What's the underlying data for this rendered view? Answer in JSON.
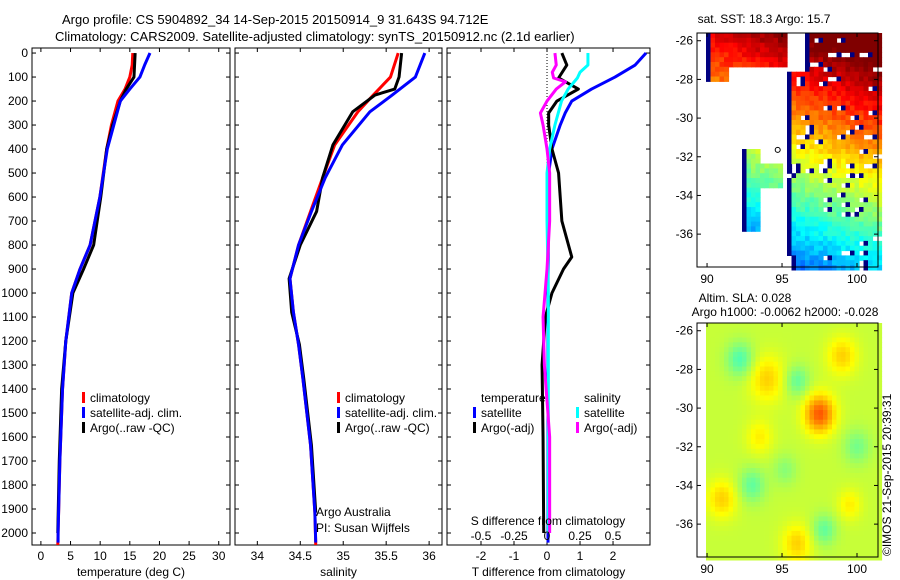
{
  "header": {
    "title_line1": "Argo profile: CS 5904892_34 14-Sep-2015 20150914_9 31.643S 94.712E",
    "title_line2": "Climatology: CARS2009. Satellite-adjusted climatology: synTS_20150912.nc (2.1d earlier)"
  },
  "credits": {
    "program": "Argo Australia",
    "pi": "PI: Susan Wijffels",
    "imos_stamp": "©IMOS 21-Sep-2015 20:39:31"
  },
  "colors": {
    "climatology": "#ff0000",
    "satellite": "#0000ff",
    "argo": "#000000",
    "s_satellite": "#00ffff",
    "s_argo": "#ff00ff"
  },
  "chart_data": [
    {
      "type": "line",
      "title": "",
      "xlabel": "temperature (deg C)",
      "ylabel": "",
      "xlim": [
        -1.5,
        31.9
      ],
      "ylim": [
        2050,
        -21
      ],
      "xticks": [
        0,
        5,
        10,
        15,
        20,
        25,
        30
      ],
      "xtick_labels": [
        "0",
        "5",
        "10",
        "15",
        "20",
        "25",
        "30"
      ],
      "yticks": [
        0,
        100,
        200,
        300,
        400,
        500,
        600,
        700,
        800,
        900,
        1000,
        1100,
        1200,
        1300,
        1400,
        1500,
        1600,
        1700,
        1800,
        1900,
        2000
      ],
      "ytick_labels": [
        "0",
        "100",
        "200",
        "300",
        "400",
        "500",
        "600",
        "700",
        "800",
        "900",
        "1000",
        "1100",
        "1200",
        "1300",
        "1400",
        "1500",
        "1600",
        "1700",
        "1800",
        "1900",
        "2000"
      ],
      "legend": [
        "climatology",
        "satellite-adj. clim.",
        "Argo(..raw -QC)"
      ],
      "series": [
        {
          "name": "climatology",
          "color": "#ff0000",
          "depth": [
            0,
            50,
            100,
            150,
            200,
            300,
            400,
            600,
            800,
            900,
            1000,
            1200,
            1400,
            1700,
            2000,
            2050
          ],
          "values": [
            15.5,
            15.4,
            15.0,
            14.2,
            13.0,
            11.9,
            11.1,
            9.95,
            8.3,
            6.6,
            5.2,
            4.2,
            3.65,
            3.2,
            2.9,
            2.85
          ]
        },
        {
          "name": "satellite-adj. clim.",
          "color": "#0000ff",
          "depth": [
            0,
            50,
            100,
            150,
            200,
            300,
            400,
            600,
            800,
            900,
            1000,
            1200,
            1400,
            1700,
            2000,
            2040
          ],
          "values": [
            18.4,
            17.5,
            16.7,
            15.0,
            13.4,
            12.3,
            11.2,
            9.95,
            8.3,
            6.6,
            5.2,
            4.2,
            3.65,
            3.2,
            2.9,
            2.9
          ]
        },
        {
          "name": "Argo(..raw -QC)",
          "color": "#000000",
          "depth": [
            0,
            50,
            100,
            150,
            200,
            300,
            400,
            600,
            800,
            900,
            1000,
            1200,
            1400,
            1700,
            2000
          ],
          "values": [
            15.9,
            15.8,
            15.7,
            14.4,
            13.4,
            12.1,
            11.1,
            10.1,
            8.9,
            7.2,
            5.4,
            4.2,
            3.5,
            3.1,
            2.85
          ]
        }
      ]
    },
    {
      "type": "line",
      "title": "",
      "xlabel": "salinity",
      "ylabel": "",
      "xlim": [
        33.74,
        36.15
      ],
      "ylim": [
        2050,
        -21
      ],
      "xticks": [
        34,
        34.5,
        35,
        35.5,
        36
      ],
      "xtick_labels": [
        "34",
        "34.5",
        "35",
        "35.5",
        "36"
      ],
      "legend": [
        "climatology",
        "satellite-adj. clim.",
        "Argo(..raw -QC)"
      ],
      "series": [
        {
          "name": "climatology",
          "color": "#ff0000",
          "depth": [
            0,
            100,
            175,
            245,
            383,
            520,
            660,
            800,
            940,
            1080,
            1215,
            1355,
            1635,
            1915,
            2050
          ],
          "values": [
            35.64,
            35.55,
            35.35,
            35.17,
            34.9,
            34.76,
            34.62,
            34.48,
            34.38,
            34.42,
            34.48,
            34.53,
            34.62,
            34.67,
            34.68
          ]
        },
        {
          "name": "satellite-adj. clim.",
          "color": "#0000ff",
          "depth": [
            0,
            100,
            175,
            245,
            383,
            520,
            660,
            800,
            940,
            1080,
            1215,
            1355,
            1635,
            1915,
            2040
          ],
          "values": [
            35.95,
            35.84,
            35.57,
            35.31,
            34.99,
            34.79,
            34.63,
            34.48,
            34.38,
            34.42,
            34.48,
            34.53,
            34.62,
            34.67,
            34.68
          ]
        },
        {
          "name": "Argo(..raw -QC)",
          "color": "#000000",
          "depth": [
            0,
            100,
            150,
            175,
            245,
            383,
            520,
            660,
            800,
            940,
            1080,
            1215,
            1355,
            1635,
            1915
          ],
          "values": [
            35.68,
            35.65,
            35.6,
            35.37,
            35.11,
            34.88,
            34.76,
            34.69,
            34.5,
            34.37,
            34.4,
            34.49,
            34.54,
            34.63,
            34.68
          ]
        }
      ]
    },
    {
      "type": "line",
      "title": "",
      "xlabel": "T difference from climatology",
      "x2label": "S difference from climatology",
      "xlim": [
        -3.03,
        3.12
      ],
      "x2lim": [
        -0.7575,
        0.78
      ],
      "ylim": [
        2050,
        -21
      ],
      "xticks": [
        -2,
        -1,
        0,
        1,
        2
      ],
      "xtick_labels": [
        "-2",
        "-1",
        "0",
        "1",
        "2"
      ],
      "x2ticks": [
        -0.5,
        -0.25,
        0,
        0.25,
        0.5
      ],
      "x2tick_labels": [
        "-0.5",
        "-0.25",
        "0",
        "0.25",
        "0.5"
      ],
      "legend_groups": [
        {
          "heading": "temperature",
          "entries": [
            "satellite",
            "Argo(-adj)"
          ]
        },
        {
          "heading": "salinity",
          "entries": [
            "satellite",
            "Argo(-adj)"
          ]
        }
      ],
      "series": [
        {
          "name": "T satellite",
          "axis": "T",
          "color": "#0000ff",
          "depth": [
            0,
            50,
            100,
            150,
            200,
            250,
            300,
            400,
            500,
            1000,
            2000,
            2040
          ],
          "values": [
            3.0,
            2.67,
            2.06,
            1.35,
            0.75,
            0.55,
            0.4,
            0.15,
            0.05,
            0.03,
            0.03,
            0.03
          ]
        },
        {
          "name": "T Argo(-adj)",
          "axis": "T",
          "color": "#000000",
          "depth": [
            0,
            50,
            104,
            150,
            200,
            250,
            300,
            400,
            500,
            600,
            700,
            800,
            850,
            900,
            1000,
            1100,
            1300,
            1600,
            2000
          ],
          "values": [
            0.45,
            0.6,
            0.35,
            0.95,
            0.3,
            0.05,
            0.05,
            0.15,
            0.35,
            0.4,
            0.45,
            0.65,
            0.75,
            0.5,
            0.15,
            -0.05,
            -0.15,
            -0.12,
            -0.1
          ]
        },
        {
          "name": "S satellite",
          "axis": "S",
          "color": "#00ffff",
          "depth": [
            0,
            50,
            80,
            104,
            150,
            200,
            300,
            400,
            500,
            700,
            1000,
            2000
          ],
          "values": [
            0.31,
            0.31,
            0.25,
            0.23,
            0.16,
            0.11,
            0.06,
            0.02,
            0,
            0,
            0.01,
            0.01
          ]
        },
        {
          "name": "S Argo(-adj)",
          "axis": "S",
          "color": "#ff00ff",
          "depth": [
            0,
            50,
            80,
            104,
            120,
            150,
            200,
            250,
            300,
            400,
            500,
            700,
            900,
            1100,
            1300,
            1600,
            2000
          ],
          "values": [
            0.06,
            0.07,
            0.04,
            0.05,
            0.14,
            0.07,
            0,
            -0.05,
            -0.03,
            0,
            0.02,
            0.02,
            0,
            -0.03,
            -0.02,
            0.02,
            0.02
          ]
        }
      ]
    },
    {
      "type": "heatmap",
      "title": "sat. SST: 18.3 Argo: 15.7",
      "xlim": [
        89.33,
        101.4
      ],
      "ylim": [
        -37.7,
        -25.6
      ],
      "xticks": [
        90,
        95,
        100
      ],
      "xtick_labels": [
        "90",
        "95",
        "100"
      ],
      "yticks": [
        -26,
        -28,
        -30,
        -32,
        -34,
        -36
      ],
      "ytick_labels": [
        "-26",
        "-28",
        "-30",
        "-32",
        "-34",
        "-36"
      ],
      "argo_location": [
        94.712,
        -31.643
      ]
    },
    {
      "type": "heatmap",
      "title": "Altim. SLA: 0.028",
      "subtitle": "Argo h1000: -0.0062 h2000: -0.028",
      "xlim": [
        89.33,
        101.4
      ],
      "ylim": [
        -37.7,
        -25.6
      ],
      "xticks": [
        90,
        95,
        100
      ],
      "xtick_labels": [
        "90",
        "95",
        "100"
      ],
      "yticks": [
        -26,
        -28,
        -30,
        -32,
        -34,
        -36
      ],
      "ytick_labels": [
        "-26",
        "-28",
        "-30",
        "-32",
        "-34",
        "-36"
      ]
    }
  ]
}
